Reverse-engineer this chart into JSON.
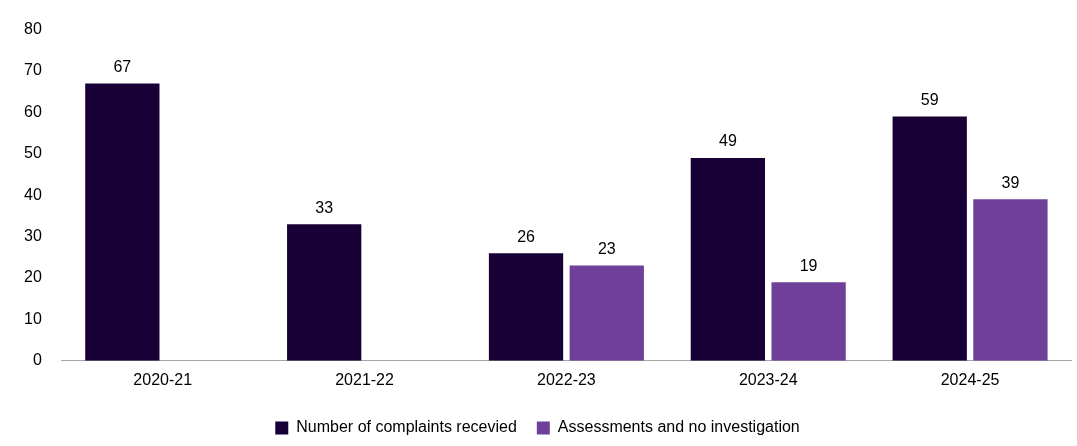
{
  "chart_data": {
    "type": "bar",
    "categories": [
      "2020-21",
      "2021-22",
      "2022-23",
      "2023-24",
      "2024-25"
    ],
    "series": [
      {
        "name": "Number of complaints recevied",
        "color": "#170035",
        "values": [
          67,
          33,
          26,
          49,
          59
        ]
      },
      {
        "name": "Assessments and no investigation",
        "color": "#6f3f9a",
        "values": [
          null,
          null,
          23,
          19,
          39
        ]
      }
    ],
    "ylim": [
      0,
      80
    ],
    "yticks": [
      0,
      10,
      20,
      30,
      40,
      50,
      60,
      70,
      80
    ],
    "grid": false,
    "legend": "bottom",
    "data_labels": true
  }
}
